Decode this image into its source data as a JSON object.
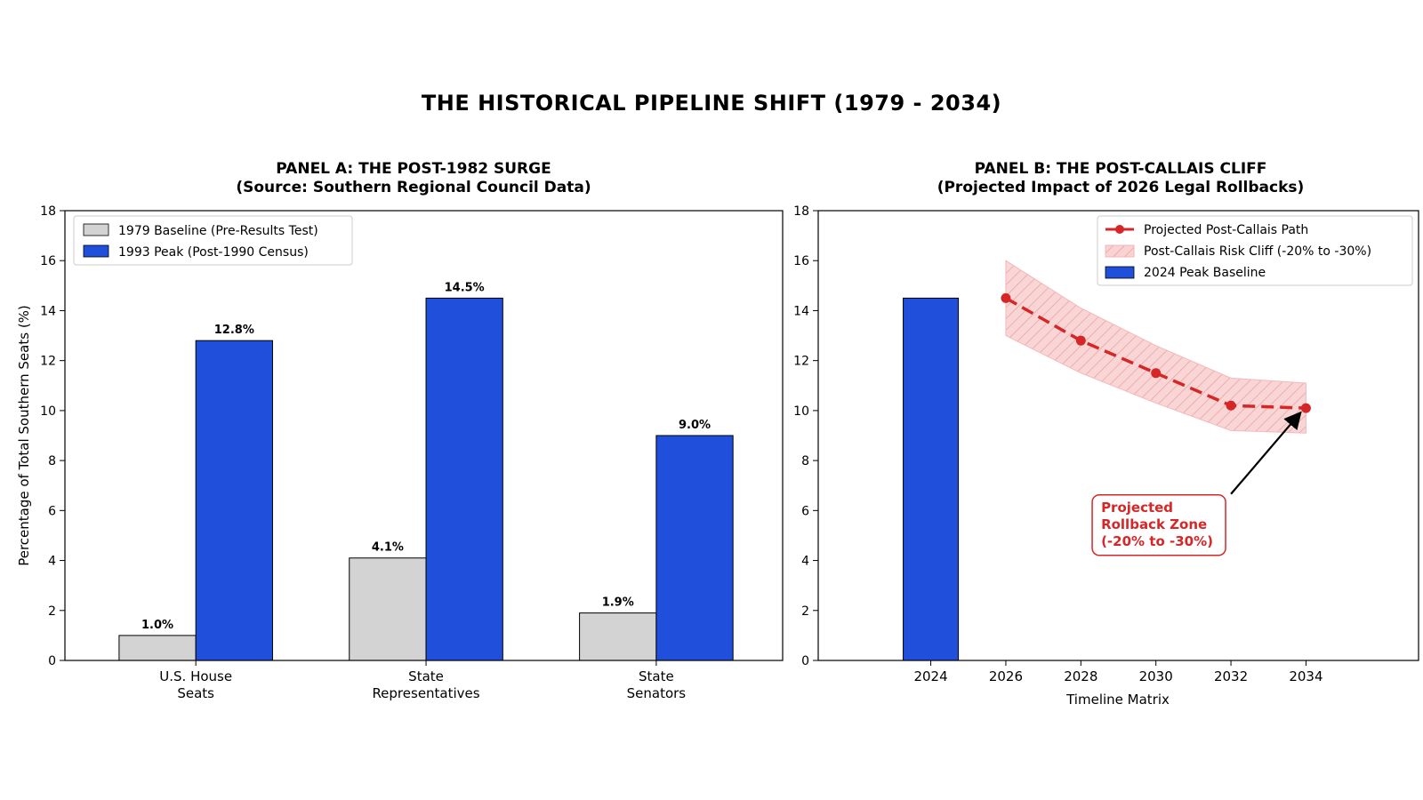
{
  "figure": {
    "title": "THE HISTORICAL PIPELINE SHIFT (1979 - 2034)"
  },
  "chart_data": [
    {
      "type": "bar",
      "title_line1": "PANEL A: THE POST-1982 SURGE",
      "title_line2": "(Source: Southern Regional Council Data)",
      "ylabel": "Percentage of Total Southern Seats (%)",
      "ylim": [
        0,
        18
      ],
      "yticks": [
        0,
        2,
        4,
        6,
        8,
        10,
        12,
        14,
        16,
        18
      ],
      "categories": [
        [
          "U.S. House",
          "Seats"
        ],
        [
          "State",
          "Representatives"
        ],
        [
          "State",
          "Senators"
        ]
      ],
      "series": [
        {
          "name": "1979 Baseline (Pre-Results Test)",
          "values": [
            1.0,
            4.1,
            1.9
          ],
          "labels": [
            "1.0%",
            "4.1%",
            "1.9%"
          ],
          "color": "#d3d3d3"
        },
        {
          "name": "1993 Peak (Post-1990 Census)",
          "values": [
            12.8,
            14.5,
            9.0
          ],
          "labels": [
            "12.8%",
            "14.5%",
            "9.0%"
          ],
          "color": "#1f4fdb"
        }
      ],
      "legend_position": "top-left",
      "grid": false
    },
    {
      "type": "line",
      "title_line1": "PANEL B: THE POST-CALLAIS CLIFF",
      "title_line2": "(Projected Impact of 2026 Legal Rollbacks)",
      "xlabel": "Timeline Matrix",
      "ylim": [
        0,
        18
      ],
      "yticks": [
        0,
        2,
        4,
        6,
        8,
        10,
        12,
        14,
        16,
        18
      ],
      "xlim": [
        2021,
        2037
      ],
      "xticks": [
        "2024",
        "2026",
        "2028",
        "2030",
        "2032",
        "2034"
      ],
      "bar": {
        "name": "2024 Peak Baseline",
        "x": 2024,
        "value": 14.5,
        "color": "#1f4fdb"
      },
      "line": {
        "name": "Projected Post-Callais Path",
        "x": [
          2026,
          2028,
          2030,
          2032,
          2034
        ],
        "y": [
          14.5,
          12.8,
          11.5,
          10.2,
          10.1
        ],
        "color": "#d62728"
      },
      "band": {
        "name": "Post-Callais Risk Cliff (-20% to -30%)",
        "x": [
          2026,
          2028,
          2030,
          2032,
          2034
        ],
        "upper": [
          16.0,
          14.1,
          12.6,
          11.3,
          11.1
        ],
        "lower": [
          13.0,
          11.5,
          10.3,
          9.2,
          9.1
        ],
        "color": "#f4b6b6"
      },
      "annotation": {
        "lines": [
          "Projected",
          "Rollback Zone",
          "(-20% to -30%)"
        ],
        "arrow_to": {
          "x": 2034,
          "y": 10.1
        },
        "text_at": {
          "x": 2032,
          "y": 5.7
        },
        "color": "#d62728"
      },
      "legend_position": "top-right",
      "grid": false
    }
  ]
}
